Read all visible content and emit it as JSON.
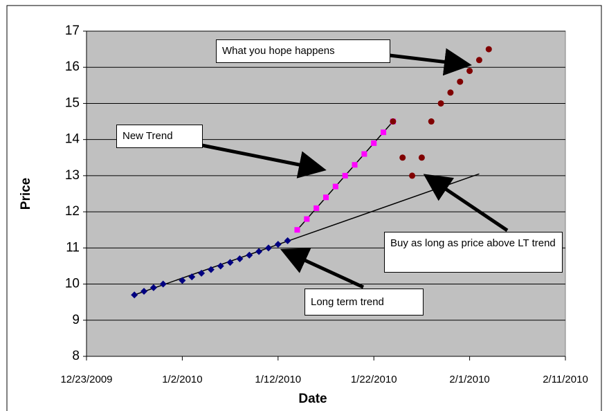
{
  "chart_data": {
    "type": "scatter",
    "x_label": "Date",
    "y_label": "Price",
    "xlim": [
      "12/23/2009",
      "2/11/2010"
    ],
    "xticks": [
      "12/23/2009",
      "1/2/2010",
      "1/12/2010",
      "1/22/2010",
      "2/1/2010",
      "2/11/2010"
    ],
    "ylim": [
      8,
      17
    ],
    "yticks": [
      8,
      9,
      10,
      11,
      12,
      13,
      14,
      15,
      16,
      17
    ],
    "grid": true,
    "series": [
      {
        "color": "#000080",
        "marker": "diamond",
        "x": [
          "12/28/2009",
          "12/29/2009",
          "12/30/2009",
          "12/31/2009",
          "1/2/2010",
          "1/3/2010",
          "1/4/2010",
          "1/5/2010",
          "1/6/2010",
          "1/7/2010",
          "1/8/2010",
          "1/9/2010",
          "1/10/2010",
          "1/11/2010",
          "1/12/2010",
          "1/13/2010"
        ],
        "values": [
          9.7,
          9.8,
          9.9,
          10.0,
          10.1,
          10.2,
          10.3,
          10.4,
          10.5,
          10.6,
          10.7,
          10.8,
          10.9,
          11.0,
          11.1,
          11.2
        ]
      },
      {
        "color": "#ff00ff",
        "marker": "square",
        "x": [
          "1/14/2010",
          "1/15/2010",
          "1/16/2010",
          "1/17/2010",
          "1/18/2010",
          "1/19/2010",
          "1/20/2010",
          "1/21/2010",
          "1/22/2010",
          "1/23/2010",
          "1/24/2010"
        ],
        "values": [
          11.5,
          11.8,
          12.1,
          12.4,
          12.7,
          13.0,
          13.3,
          13.6,
          13.9,
          14.2,
          14.5
        ]
      },
      {
        "color": "#800000",
        "marker": "circle",
        "x": [
          "1/24/2010",
          "1/25/2010",
          "1/26/2010",
          "1/27/2010",
          "1/28/2010",
          "1/29/2010",
          "1/30/2010",
          "1/31/2010",
          "2/1/2010",
          "2/2/2010",
          "2/3/2010"
        ],
        "values": [
          14.5,
          13.5,
          13.0,
          13.5,
          14.5,
          15.0,
          15.3,
          15.6,
          15.9,
          16.2,
          16.5
        ]
      }
    ],
    "trendlines": [
      {
        "color": "#000000",
        "x": [
          "12/28/2009",
          "2/2/2010"
        ],
        "values": [
          9.7,
          13.05
        ]
      },
      {
        "color": "#000000",
        "x": [
          "1/14/2010",
          "1/24/2010"
        ],
        "values": [
          11.5,
          14.5
        ]
      }
    ],
    "annotations": [
      "What you hope happens",
      "New Trend",
      "Buy as long as price above LT trend",
      "Long term trend"
    ]
  }
}
